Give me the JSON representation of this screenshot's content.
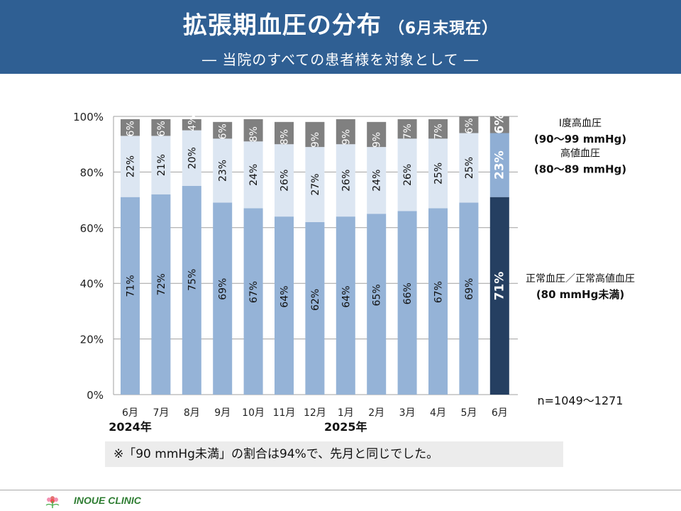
{
  "header": {
    "title": "拡張期血圧の分布",
    "title_suffix": "（6月末現在）",
    "subtitle": "―  当院のすべての患者様を対象として  ―"
  },
  "colors": {
    "header_bg": "#2f5f93",
    "normal": "#95b3d7",
    "high_normal": "#dce6f2",
    "grade1": "#808080",
    "current_normal": "#253f61",
    "current_high_normal": "#8faed4"
  },
  "chart_data": {
    "type": "bar",
    "stacked": true,
    "categories": [
      "6月",
      "7月",
      "8月",
      "9月",
      "10月",
      "11月",
      "12月",
      "1月",
      "2月",
      "3月",
      "4月",
      "5月",
      "6月"
    ],
    "year_labels": [
      {
        "index": 0,
        "label": "2024年"
      },
      {
        "index": 7,
        "label": "2025年"
      }
    ],
    "y_ticks": [
      "0%",
      "20%",
      "40%",
      "60%",
      "80%",
      "100%"
    ],
    "ylim": [
      0,
      100
    ],
    "highlight_index": 12,
    "series": [
      {
        "name": "正常血圧／正常高値血圧",
        "name_sub": "(80 mmHg未満)",
        "values": [
          71,
          72,
          75,
          69,
          67,
          64,
          62,
          64,
          65,
          66,
          67,
          69,
          71
        ],
        "labels": [
          "71%",
          "72%",
          "75%",
          "69%",
          "67%",
          "64%",
          "62%",
          "64%",
          "65%",
          "66%",
          "67%",
          "69%",
          "71%"
        ]
      },
      {
        "name": "高値血圧",
        "name_sub": "(80～89 mmHg)",
        "values": [
          22,
          21,
          20,
          23,
          24,
          26,
          27,
          26,
          24,
          26,
          25,
          25,
          23
        ],
        "labels": [
          "22%",
          "21%",
          "20%",
          "23%",
          "24%",
          "26%",
          "27%",
          "26%",
          "24%",
          "26%",
          "25%",
          "25%",
          "23%"
        ]
      },
      {
        "name": "Ⅰ度高血圧",
        "name_sub": "(90～99 mmHg)",
        "values": [
          6,
          6,
          4,
          6,
          8,
          8,
          9,
          9,
          9,
          7,
          7,
          6,
          6
        ],
        "labels": [
          "6%",
          "6%",
          "4%",
          "6%",
          "8%",
          "8%",
          "9%",
          "9%",
          "9%",
          "7%",
          "7%",
          "6%",
          "6%"
        ]
      }
    ],
    "n_label": "n=1049～1271"
  },
  "note": "※「90 mmHg未満」の割合は94%で、先月と同じでした。",
  "footer": {
    "clinic_name": "INOUE CLINIC",
    "logo_icon": "flower-logo-icon"
  }
}
